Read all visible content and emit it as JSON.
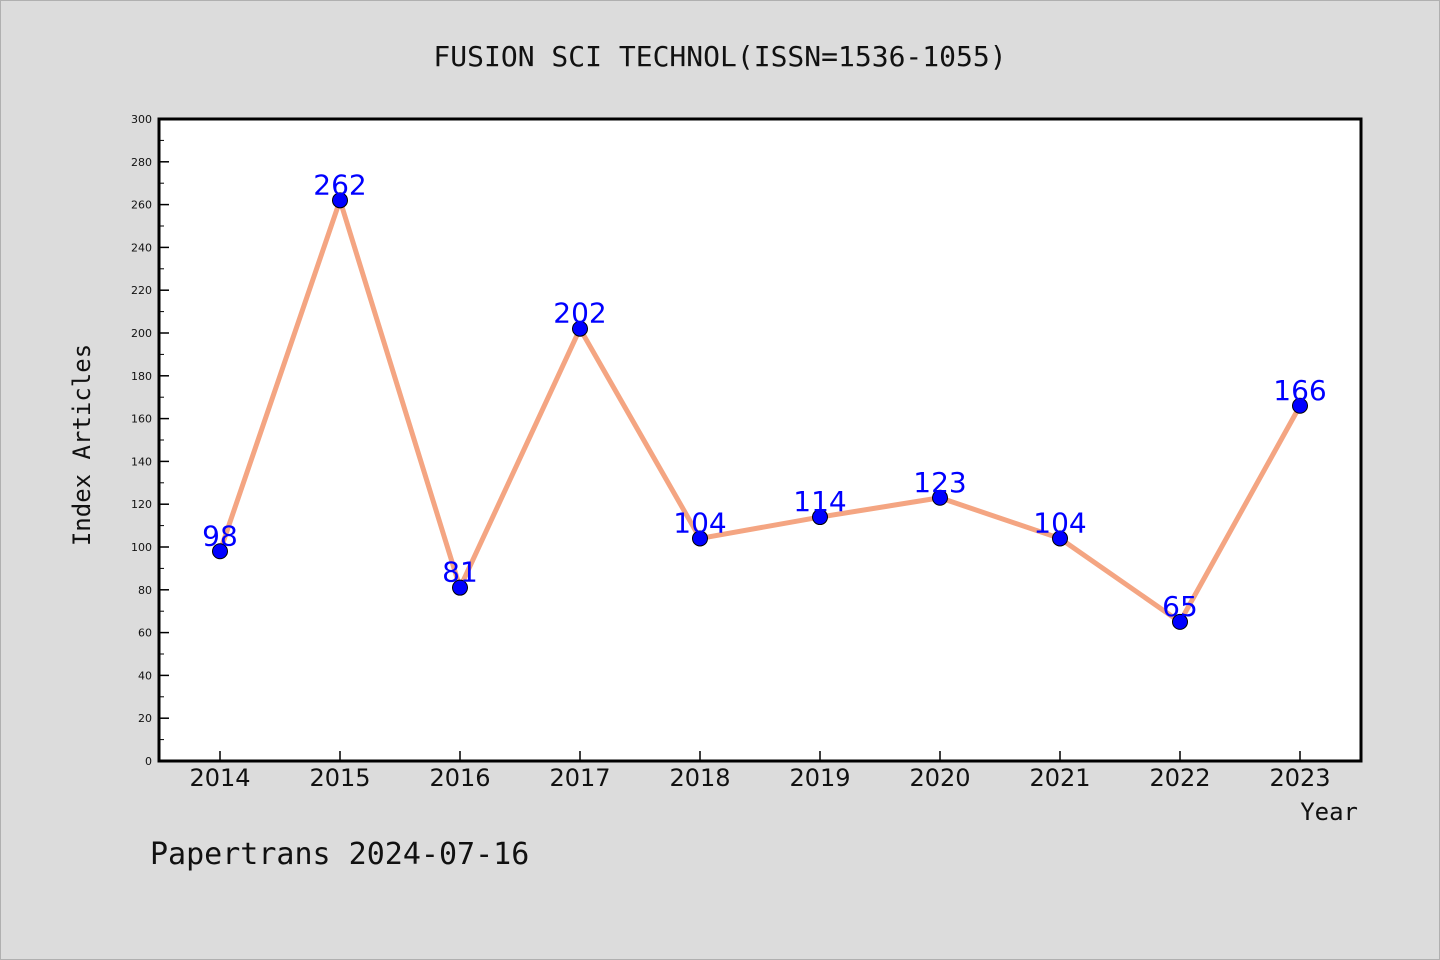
{
  "chart_data": {
    "type": "line",
    "title": "FUSION SCI TECHNOL(ISSN=1536-1055)",
    "xlabel": "Year",
    "ylabel": "Index Articles",
    "categories": [
      "2014",
      "2015",
      "2016",
      "2017",
      "2018",
      "2019",
      "2020",
      "2021",
      "2022",
      "2023"
    ],
    "series": [
      {
        "values": [
          98,
          262,
          81,
          202,
          104,
          114,
          123,
          104,
          65,
          166
        ]
      }
    ],
    "ylim": [
      0,
      300
    ],
    "yticks": [
      0,
      20,
      40,
      60,
      80,
      100,
      120,
      140,
      160,
      180,
      200,
      220,
      240,
      260,
      280,
      300
    ],
    "grid": false,
    "colors": {
      "line": "#f4a582",
      "marker": "#0000ff",
      "label": "#0000ff",
      "background": "#dcdcdc",
      "plot_bg": "#ffffff"
    }
  },
  "footer": {
    "text": "Papertrans 2024-07-16"
  }
}
